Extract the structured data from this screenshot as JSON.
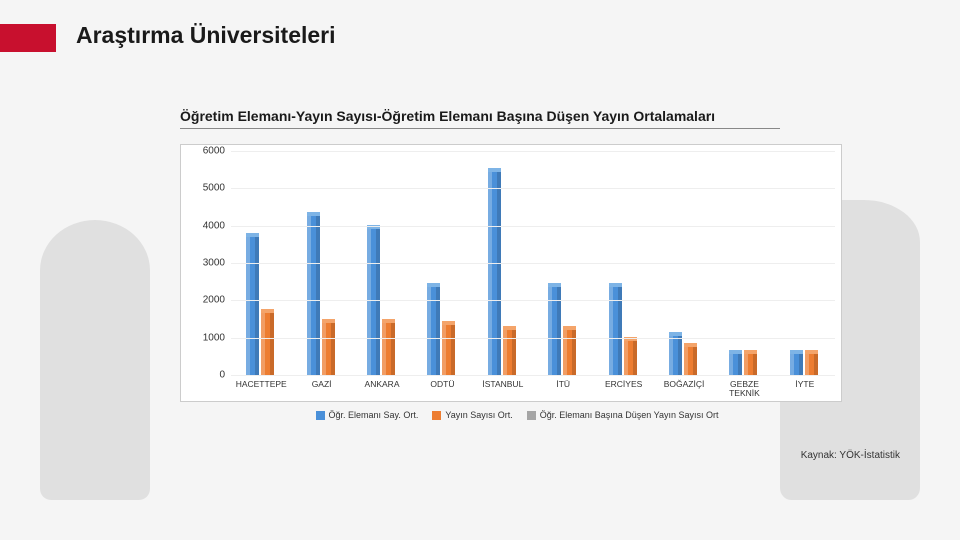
{
  "page_title": "Araştırma Üniversiteleri",
  "chart": {
    "title": "Öğretim Elemanı-Yayın Sayısı-Öğretim Elemanı Başına Düşen Yayın Ortalamaları",
    "type": "bar",
    "ylim": [
      0,
      6000
    ],
    "ytick_step": 1000,
    "yticks": [
      0,
      1000,
      2000,
      3000,
      4000,
      5000,
      6000
    ],
    "categories": [
      "HACETTEPE",
      "GAZİ",
      "ANKARA",
      "ODTÜ",
      "İSTANBUL",
      "İTÜ",
      "ERCİYES",
      "BOĞAZİÇİ",
      "GEBZE TEKNİK",
      "İYTE"
    ],
    "series": [
      {
        "name": "Öğr. Elemanı Say. Ort.",
        "color": "#4a90d9",
        "top": "#7eb4e6",
        "values": [
          3700,
          4250,
          3900,
          2350,
          5450,
          2350,
          2350,
          1050,
          550,
          550
        ]
      },
      {
        "name": "Yayın Sayısı Ort.",
        "color": "#ed7d31",
        "top": "#f4a46a",
        "values": [
          1650,
          1400,
          1400,
          1350,
          1200,
          1200,
          900,
          750,
          550,
          550
        ]
      },
      {
        "name": "Öğr. Elemanı Başına Düşen Yayın Sayısı Ort",
        "color": "#a5a5a5",
        "top": "#c7c7c7",
        "values": [
          20,
          15,
          15,
          25,
          10,
          25,
          15,
          30,
          40,
          40
        ]
      }
    ],
    "background_color": "#ffffff",
    "grid_color": "#eeeeee",
    "border_color": "#cccccc",
    "axis_fontsize": 10,
    "category_fontsize": 8.5,
    "legend_fontsize": 9
  },
  "legend_items": [
    {
      "swatch": "#4a90d9",
      "label": "Öğr. Elemanı Say. Ort."
    },
    {
      "swatch": "#ed7d31",
      "label": "Yayın Sayısı Ort."
    },
    {
      "swatch": "#a5a5a5",
      "label": "Öğr. Elemanı Başına Düşen Yayın Sayısı Ort"
    }
  ],
  "source": "Kaynak: YÖK-İstatistik"
}
